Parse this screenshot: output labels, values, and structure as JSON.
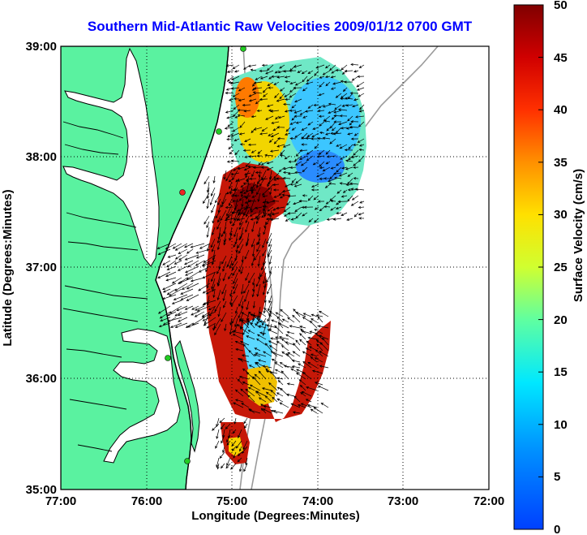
{
  "title": "Southern Mid-Atlantic Raw Velocities 2009/01/12 0700 GMT",
  "axes": {
    "xlabel": "Longitude (Degrees:Minutes)",
    "ylabel": "Latitude (Degrees:Minutes)",
    "x_ticks": [
      "77:00",
      "76:00",
      "75:00",
      "74:00",
      "73:00",
      "72:00"
    ],
    "y_ticks": [
      "39:00",
      "38:00",
      "37:00",
      "36:00",
      "35:00"
    ],
    "xlim": [
      -77,
      -72
    ],
    "ylim": [
      35,
      39
    ],
    "grid": "dotted"
  },
  "colorbar": {
    "label": "Surface Velocity (cm/s)",
    "ticks": [
      "50",
      "45",
      "40",
      "35",
      "30",
      "25",
      "20",
      "15",
      "10",
      "5",
      "0"
    ],
    "range": [
      0,
      50
    ],
    "colormap": "jet"
  },
  "colors": {
    "land": "#5af2a0",
    "water": "#ffffff",
    "coastline": "#000000",
    "bathymetry": "#9a9a9a",
    "title": "#0000ff",
    "station_green": "#22cc22",
    "station_red": "#ee2222"
  },
  "stations": [
    {
      "lon": -74.9,
      "lat": 38.98,
      "status": "active"
    },
    {
      "lon": -75.15,
      "lat": 38.22,
      "status": "active"
    },
    {
      "lon": -75.5,
      "lat": 37.7,
      "status": "inactive"
    },
    {
      "lon": -75.6,
      "lat": 36.2,
      "status": "active"
    },
    {
      "lon": -75.5,
      "lat": 35.25,
      "status": "active"
    }
  ]
}
